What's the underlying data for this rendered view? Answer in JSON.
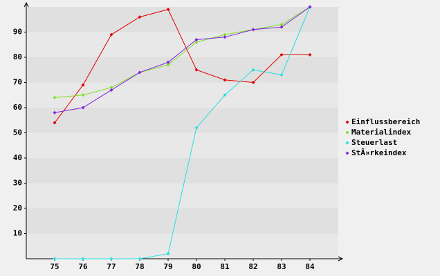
{
  "chart_data": {
    "type": "line",
    "x": [
      75,
      76,
      77,
      78,
      79,
      80,
      81,
      82,
      83,
      84
    ],
    "xlim": [
      74,
      85
    ],
    "xticks": [
      75,
      76,
      77,
      78,
      79,
      80,
      81,
      82,
      83,
      84
    ],
    "ylim": [
      0,
      100
    ],
    "yticks": [
      10,
      20,
      30,
      40,
      50,
      60,
      70,
      80,
      90
    ],
    "legend": "right",
    "series": [
      {
        "name": "Einflussbereich",
        "color": "#e00000",
        "values": [
          54,
          69,
          89,
          96,
          99,
          75,
          71,
          70,
          81,
          81
        ]
      },
      {
        "name": "Materialindex",
        "color": "#80e020",
        "values": [
          64,
          65,
          68,
          74,
          77,
          86,
          89,
          91,
          93,
          100
        ]
      },
      {
        "name": "Steuerlast",
        "color": "#20e0e0",
        "values": [
          0,
          0,
          0,
          0,
          2,
          52,
          65,
          75,
          73,
          100
        ]
      },
      {
        "name": "StÃ¤rkeindex",
        "color": "#8020e0",
        "values": [
          58,
          60,
          67,
          74,
          78,
          87,
          88,
          91,
          92,
          100
        ]
      }
    ]
  }
}
